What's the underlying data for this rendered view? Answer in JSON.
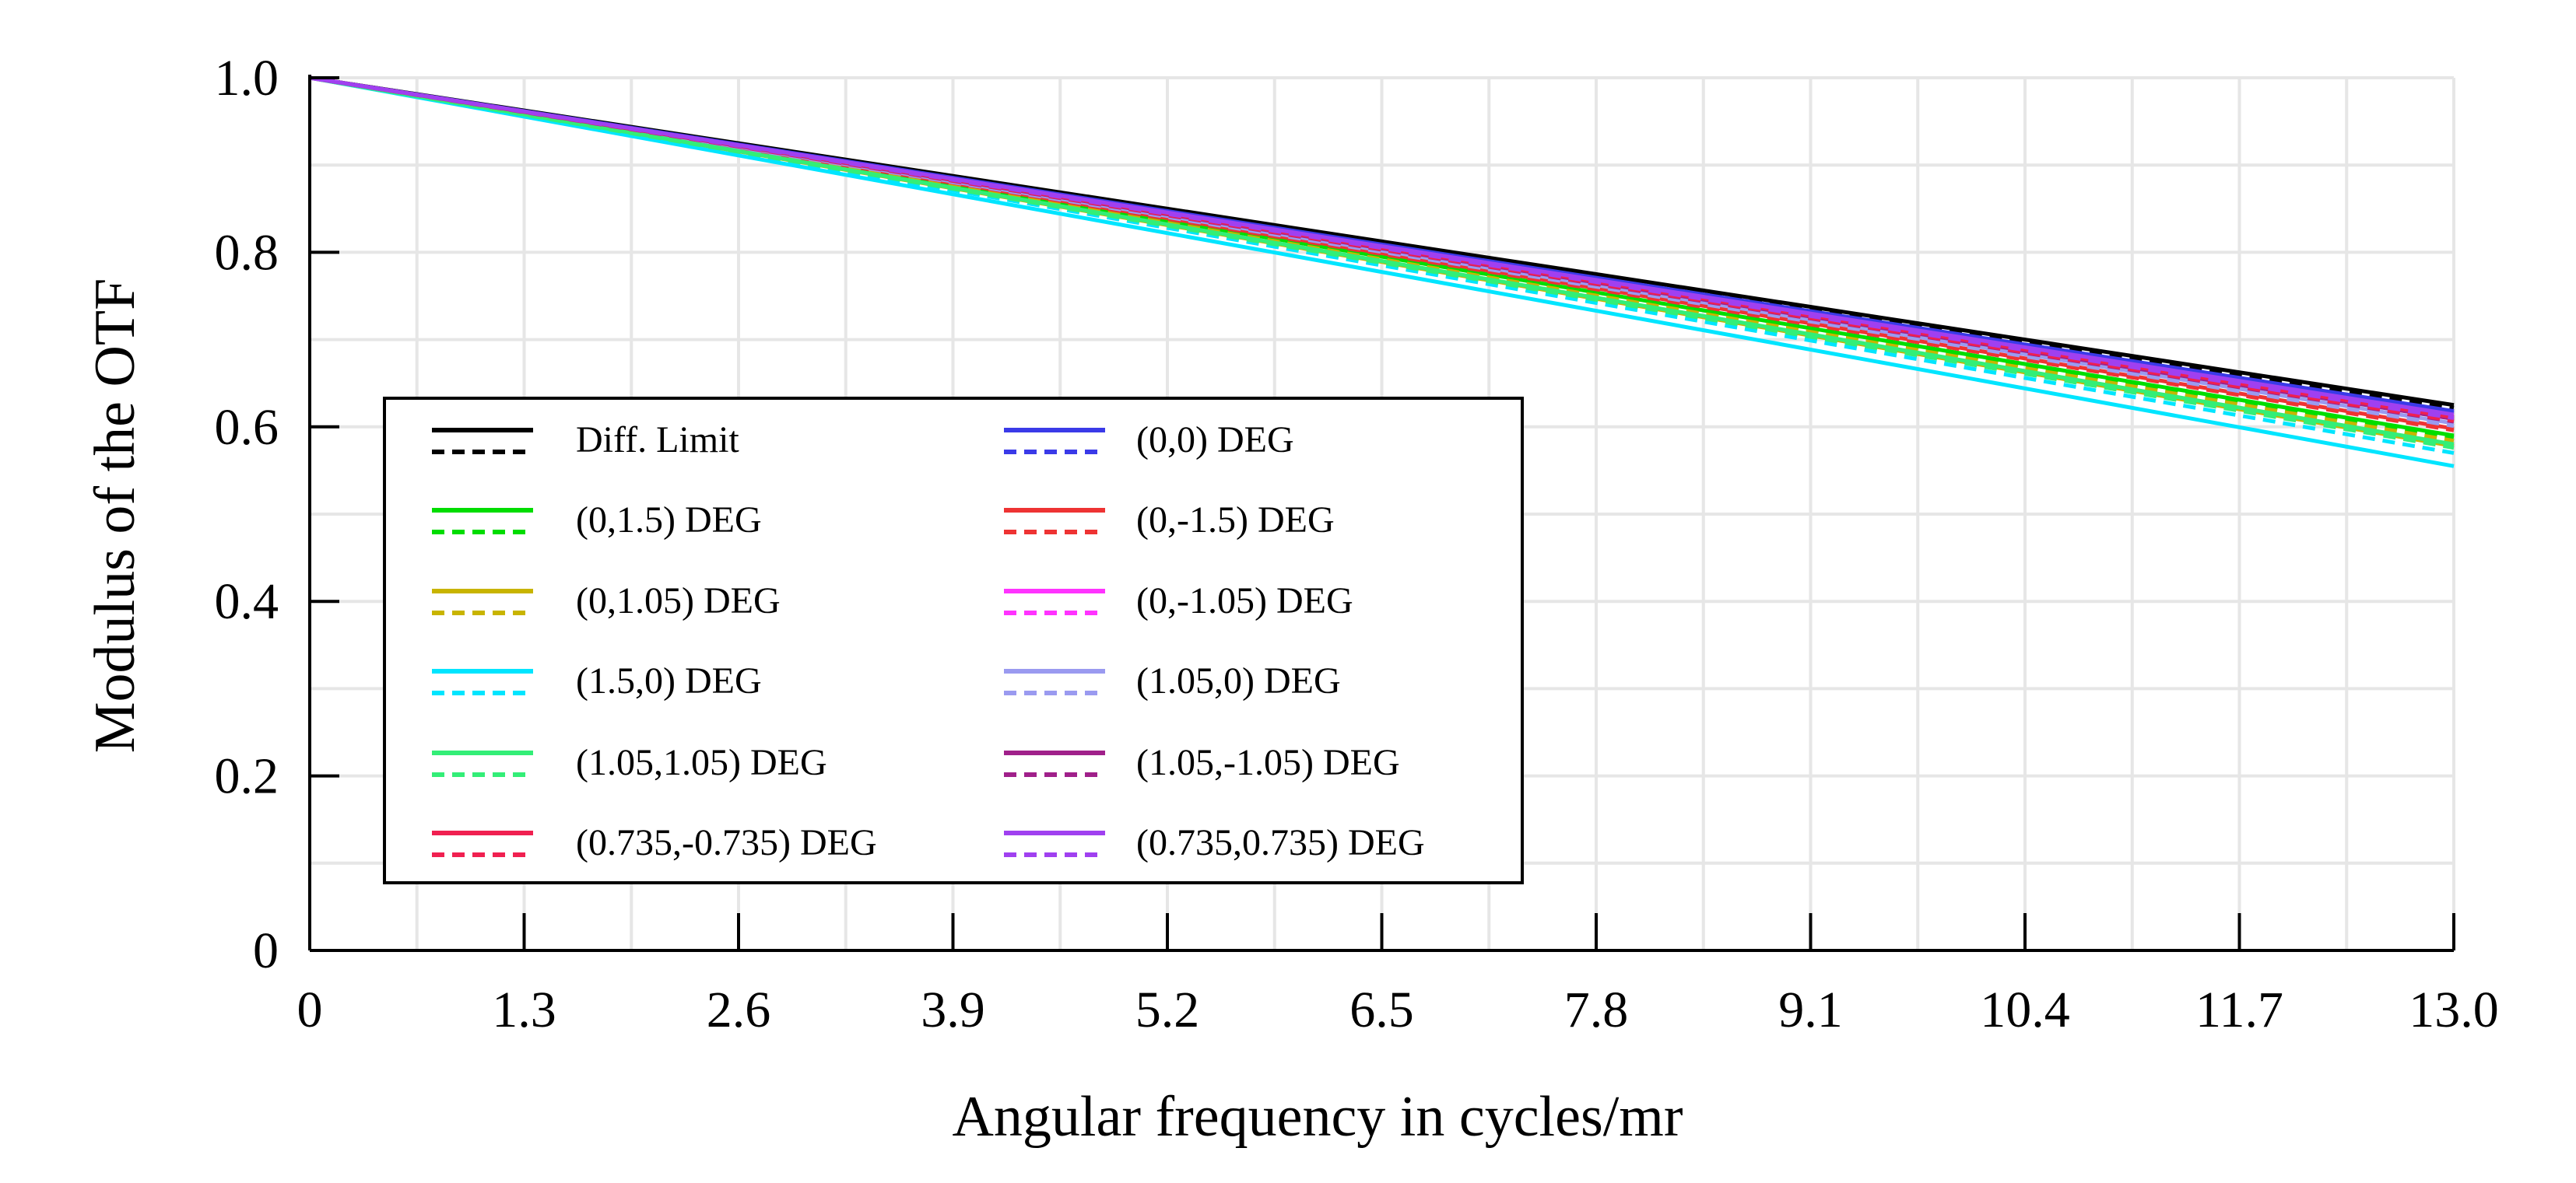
{
  "chart_data": {
    "type": "line",
    "title": "",
    "xlabel": "Angular frequency in cycles/mr",
    "ylabel": "Modulus of the OTF",
    "xlim": [
      0,
      13.0
    ],
    "ylim": [
      0,
      1.0
    ],
    "x_ticks": [
      "0",
      "1.3",
      "2.6",
      "3.9",
      "5.2",
      "6.5",
      "7.8",
      "9.1",
      "10.4",
      "11.7",
      "13.0"
    ],
    "y_ticks": [
      "0",
      "0.2",
      "0.4",
      "0.6",
      "0.8",
      "1.0"
    ],
    "grid": true,
    "legend_position": "lower-left",
    "x": [
      0,
      13.0
    ],
    "series": [
      {
        "name": "Diff. Limit",
        "color": "#000000",
        "tangential": [
          1.0,
          0.625
        ],
        "sagittal": [
          1.0,
          0.622
        ]
      },
      {
        "name": "(0,0) DEG",
        "color": "#3a3ae8",
        "tangential": [
          1.0,
          0.618
        ],
        "sagittal": [
          1.0,
          0.616
        ]
      },
      {
        "name": "(0,1.5) DEG",
        "color": "#00dd00",
        "tangential": [
          1.0,
          0.59
        ],
        "sagittal": [
          1.0,
          0.588
        ]
      },
      {
        "name": "(0,-1.5) DEG",
        "color": "#ee3333",
        "tangential": [
          1.0,
          0.598
        ],
        "sagittal": [
          1.0,
          0.596
        ]
      },
      {
        "name": "(0,1.05) DEG",
        "color": "#c8b400",
        "tangential": [
          1.0,
          0.578
        ],
        "sagittal": [
          1.0,
          0.584
        ]
      },
      {
        "name": "(0,-1.05) DEG",
        "color": "#ff33ff",
        "tangential": [
          1.0,
          0.612
        ],
        "sagittal": [
          1.0,
          0.608
        ]
      },
      {
        "name": "(1.5,0) DEG",
        "color": "#00e5ff",
        "tangential": [
          1.0,
          0.555
        ],
        "sagittal": [
          1.0,
          0.57
        ]
      },
      {
        "name": "(1.05,0) DEG",
        "color": "#9a9af0",
        "tangential": [
          1.0,
          0.604
        ],
        "sagittal": [
          1.0,
          0.601
        ]
      },
      {
        "name": "(1.05,1.05) DEG",
        "color": "#33ee77",
        "tangential": [
          1.0,
          0.58
        ],
        "sagittal": [
          1.0,
          0.576
        ]
      },
      {
        "name": "(1.05,-1.05) DEG",
        "color": "#a0208a",
        "tangential": [
          1.0,
          0.609
        ],
        "sagittal": [
          1.0,
          0.606
        ]
      },
      {
        "name": "(0.735,-0.735) DEG",
        "color": "#f02050",
        "tangential": [
          1.0,
          0.611
        ],
        "sagittal": [
          1.0,
          0.607
        ]
      },
      {
        "name": "(0.735,0.735) DEG",
        "color": "#a040f0",
        "tangential": [
          1.0,
          0.614
        ],
        "sagittal": [
          1.0,
          0.61
        ]
      }
    ]
  }
}
